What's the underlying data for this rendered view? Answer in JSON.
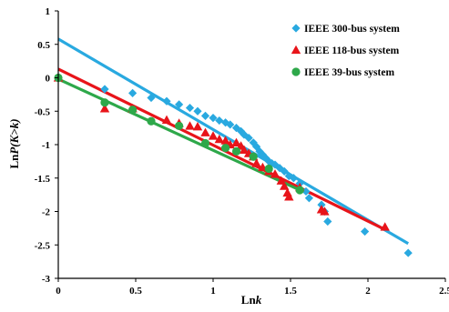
{
  "chart_data": {
    "type": "scatter",
    "xlabel": "Lnk",
    "xlabel_main": "Ln",
    "xlabel_var": "k",
    "ylabel": "LnP(K>k)",
    "ylabel_main": "Ln",
    "ylabel_var": "P(K>k)",
    "xlim": [
      0,
      2.5
    ],
    "ylim": [
      -3,
      1
    ],
    "x_ticks": [
      0,
      0.5,
      1,
      1.5,
      2,
      2.5
    ],
    "x_tick_labels": [
      "0",
      "0.5",
      "1",
      "1.5",
      "2",
      "2.5"
    ],
    "y_ticks": [
      1,
      0.5,
      0,
      -0.5,
      -1,
      -1.5,
      -2,
      -2.5,
      -3
    ],
    "y_tick_labels": [
      "1",
      "0.5",
      "0",
      "-0.5",
      "-1",
      "-1.5",
      "-2",
      "-2.5",
      "-3"
    ],
    "grid": false,
    "legend_position": "top-right",
    "series": [
      {
        "name": "IEEE 300-bus system",
        "marker": "diamond",
        "color": "#29A9E0",
        "points": [
          [
            0.0,
            0.0
          ],
          [
            0.3,
            -0.17
          ],
          [
            0.48,
            -0.23
          ],
          [
            0.6,
            -0.3
          ],
          [
            0.7,
            -0.35
          ],
          [
            0.78,
            -0.4
          ],
          [
            0.85,
            -0.45
          ],
          [
            0.9,
            -0.5
          ],
          [
            0.95,
            -0.57
          ],
          [
            1.0,
            -0.6
          ],
          [
            1.04,
            -0.64
          ],
          [
            1.08,
            -0.67
          ],
          [
            1.11,
            -0.7
          ],
          [
            1.15,
            -0.75
          ],
          [
            1.18,
            -0.8
          ],
          [
            1.2,
            -0.85
          ],
          [
            1.23,
            -0.9
          ],
          [
            1.26,
            -0.97
          ],
          [
            1.28,
            -1.03
          ],
          [
            1.3,
            -1.1
          ],
          [
            1.32,
            -1.15
          ],
          [
            1.34,
            -1.2
          ],
          [
            1.36,
            -1.25
          ],
          [
            1.38,
            -1.28
          ],
          [
            1.4,
            -1.3
          ],
          [
            1.43,
            -1.35
          ],
          [
            1.46,
            -1.4
          ],
          [
            1.49,
            -1.47
          ],
          [
            1.52,
            -1.5
          ],
          [
            1.56,
            -1.58
          ],
          [
            1.6,
            -1.7
          ],
          [
            1.62,
            -1.8
          ],
          [
            1.7,
            -1.9
          ],
          [
            1.72,
            -2.0
          ],
          [
            1.74,
            -2.15
          ],
          [
            1.98,
            -2.3
          ],
          [
            2.26,
            -2.62
          ]
        ],
        "fit": [
          [
            0,
            0.58
          ],
          [
            2.26,
            -2.48
          ]
        ]
      },
      {
        "name": "IEEE 118-bus system",
        "marker": "triangle",
        "color": "#E8141A",
        "points": [
          [
            0.0,
            0.0
          ],
          [
            0.3,
            -0.46
          ],
          [
            0.48,
            -0.46
          ],
          [
            0.7,
            -0.63
          ],
          [
            0.78,
            -0.68
          ],
          [
            0.85,
            -0.72
          ],
          [
            0.9,
            -0.73
          ],
          [
            0.95,
            -0.82
          ],
          [
            1.0,
            -0.87
          ],
          [
            1.04,
            -0.92
          ],
          [
            1.08,
            -0.94
          ],
          [
            1.11,
            -1.0
          ],
          [
            1.15,
            -0.97
          ],
          [
            1.18,
            -1.02
          ],
          [
            1.2,
            -1.08
          ],
          [
            1.23,
            -1.13
          ],
          [
            1.26,
            -1.18
          ],
          [
            1.28,
            -1.28
          ],
          [
            1.32,
            -1.34
          ],
          [
            1.36,
            -1.4
          ],
          [
            1.4,
            -1.44
          ],
          [
            1.44,
            -1.54
          ],
          [
            1.46,
            -1.62
          ],
          [
            1.48,
            -1.72
          ],
          [
            1.49,
            -1.78
          ],
          [
            1.56,
            -1.64
          ],
          [
            1.7,
            -1.97
          ],
          [
            1.72,
            -2.0
          ],
          [
            2.11,
            -2.23
          ]
        ],
        "fit": [
          [
            0,
            0.13
          ],
          [
            2.11,
            -2.27
          ]
        ]
      },
      {
        "name": "IEEE 39-bus system",
        "marker": "circle",
        "color": "#2EA84A",
        "points": [
          [
            0.0,
            0.0
          ],
          [
            0.3,
            -0.37
          ],
          [
            0.48,
            -0.48
          ],
          [
            0.6,
            -0.65
          ],
          [
            0.78,
            -0.72
          ],
          [
            0.95,
            -0.98
          ],
          [
            1.08,
            -1.05
          ],
          [
            1.15,
            -1.1
          ],
          [
            1.26,
            -1.18
          ],
          [
            1.36,
            -1.36
          ],
          [
            1.56,
            -1.68
          ]
        ],
        "fit": [
          [
            0,
            -0.02
          ],
          [
            1.56,
            -1.68
          ]
        ]
      }
    ]
  }
}
